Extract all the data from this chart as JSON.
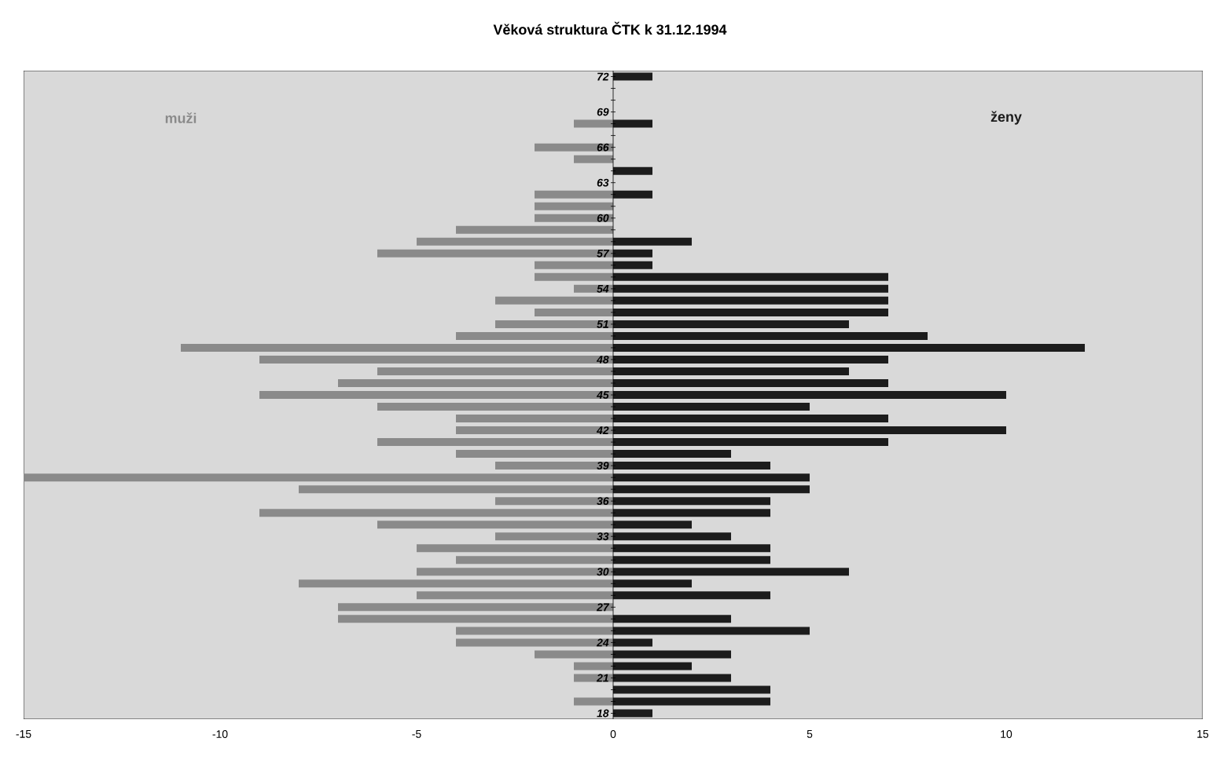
{
  "chart_data": {
    "type": "bar",
    "orientation": "horizontal",
    "title": "Věková struktura ČTK k 31.12.1994",
    "categories": [
      "72",
      null,
      null,
      "69",
      null,
      null,
      "66",
      null,
      null,
      "63",
      null,
      null,
      "60",
      null,
      null,
      "57",
      null,
      null,
      "54",
      null,
      null,
      "51",
      null,
      null,
      "48",
      null,
      null,
      "45",
      null,
      null,
      "42",
      null,
      null,
      "39",
      null,
      null,
      "36",
      null,
      null,
      "33",
      null,
      null,
      "30",
      null,
      null,
      "27",
      null,
      null,
      "24",
      null,
      null,
      "21",
      null,
      null,
      "18"
    ],
    "series": [
      {
        "name": "muži",
        "color": "#8a8a8a",
        "values": [
          0,
          0,
          0,
          0,
          -1,
          0,
          -2,
          -1,
          0,
          0,
          -2,
          -2,
          -2,
          -4,
          -5,
          -6,
          -2,
          -2,
          -1,
          -3,
          -2,
          -3,
          -4,
          -11,
          -9,
          -6,
          -7,
          -9,
          -6,
          -4,
          -4,
          -6,
          -4,
          -3,
          -15,
          -8,
          -3,
          -9,
          -6,
          -3,
          -5,
          -4,
          -5,
          -8,
          -5,
          -7,
          -7,
          -4,
          -4,
          -2,
          -1,
          -1,
          0,
          -1,
          0
        ]
      },
      {
        "name": "ženy",
        "color": "#1c1c1c",
        "values": [
          1,
          0,
          0,
          0,
          1,
          0,
          0,
          0,
          1,
          0,
          1,
          0,
          0,
          0,
          2,
          1,
          1,
          7,
          7,
          7,
          7,
          6,
          8,
          12,
          7,
          6,
          7,
          10,
          5,
          7,
          10,
          7,
          3,
          4,
          5,
          5,
          4,
          4,
          2,
          3,
          4,
          4,
          6,
          2,
          4,
          0,
          3,
          5,
          1,
          3,
          2,
          3,
          4,
          4,
          1
        ]
      }
    ],
    "stacked": true,
    "xlim": [
      -15,
      15
    ],
    "xticks": [
      -15,
      -10,
      -5,
      0,
      5,
      10,
      15
    ],
    "grid": false,
    "legend": false
  }
}
